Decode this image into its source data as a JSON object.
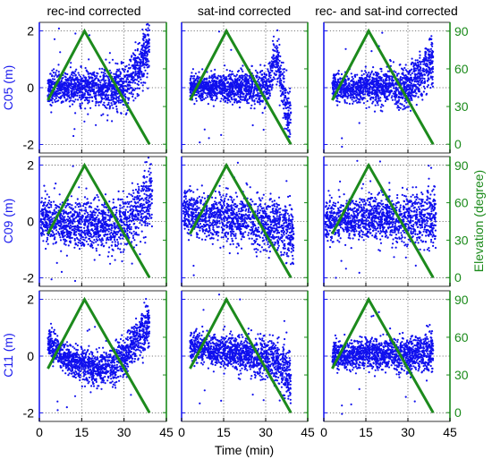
{
  "chart_data": {
    "type": "scatter",
    "panel_titles": [
      "rec-ind corrected",
      "sat-ind corrected",
      "rec- and sat-ind corrected"
    ],
    "row_labels": [
      "C05 (m)",
      "C09 (m)",
      "C11 (m)"
    ],
    "xlabel": "Time (min)",
    "ylabel_right": "Elevation (degree)",
    "xlim": [
      0,
      45
    ],
    "ylim": [
      -2.3,
      2.3
    ],
    "xticks": [
      0,
      15,
      30,
      45
    ],
    "yticks": [
      -2,
      0,
      2
    ],
    "elev_lim": [
      -7,
      97
    ],
    "elev_ticks": [
      0,
      30,
      60,
      90
    ],
    "grid": true,
    "colors": {
      "residual": "#1010ee",
      "elevation": "#1c8a1c",
      "grid": "#555555",
      "axis_left": "#1a1aee",
      "axis_right": "#1a8a1a"
    },
    "series": [
      {
        "name": "residual",
        "marker": "dot",
        "color": "#1010ee"
      },
      {
        "name": "elevation",
        "marker": "line",
        "color": "#1c8a1c"
      }
    ],
    "elevation_line": {
      "x": [
        3,
        16,
        39
      ],
      "elev": [
        35,
        90,
        0
      ]
    },
    "panels": [
      {
        "row": 0,
        "col": 0,
        "x_range": [
          3,
          39
        ],
        "shape": "rise-end",
        "spread": 0.26,
        "spread_growth": 0.45,
        "end_rise": 1.4
      },
      {
        "row": 0,
        "col": 1,
        "x_range": [
          3,
          39
        ],
        "shape": "rise-end-wave",
        "spread": 0.22,
        "spread_growth": 0.5,
        "end_rise": 1.0
      },
      {
        "row": 0,
        "col": 2,
        "x_range": [
          3,
          39
        ],
        "shape": "rise-end",
        "spread": 0.24,
        "spread_growth": 0.45,
        "end_rise": 1.0
      },
      {
        "row": 1,
        "col": 0,
        "x_range": [
          0.5,
          40
        ],
        "shape": "smile",
        "spread": 0.4,
        "spread_growth": 0.2,
        "end_rise": 0.9
      },
      {
        "row": 1,
        "col": 1,
        "x_range": [
          0.5,
          40
        ],
        "shape": "decline",
        "spread": 0.38,
        "spread_growth": 0.2,
        "end_rise": -0.3
      },
      {
        "row": 1,
        "col": 2,
        "x_range": [
          0.5,
          40
        ],
        "shape": "flat",
        "spread": 0.36,
        "spread_growth": 0.25,
        "end_rise": 0.2
      },
      {
        "row": 2,
        "col": 0,
        "x_range": [
          3,
          39
        ],
        "shape": "bowl",
        "spread": 0.26,
        "spread_growth": 0.3,
        "end_rise": 0.8
      },
      {
        "row": 2,
        "col": 1,
        "x_range": [
          3,
          39
        ],
        "shape": "decline",
        "spread": 0.26,
        "spread_growth": 0.35,
        "end_rise": -0.5
      },
      {
        "row": 2,
        "col": 2,
        "x_range": [
          3,
          39
        ],
        "shape": "flat",
        "spread": 0.24,
        "spread_growth": 0.3,
        "end_rise": 0.15
      }
    ]
  }
}
